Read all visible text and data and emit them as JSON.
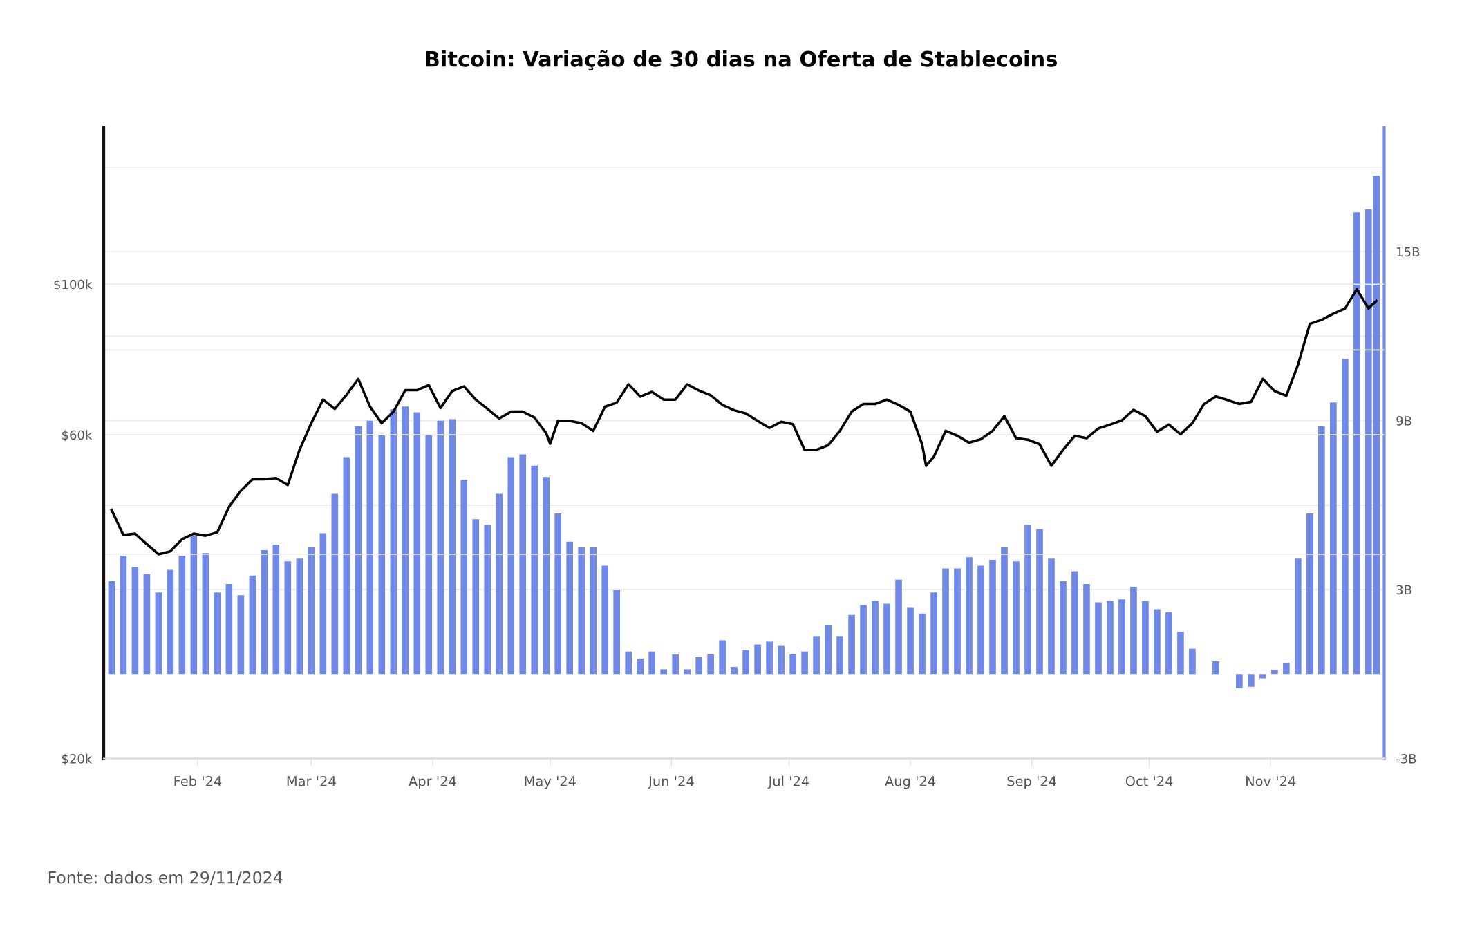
{
  "chart_data": {
    "type": "bar",
    "title": "Bitcoin: Variação de 30 dias na Oferta de Stablecoins",
    "annotations": [
      "Fonte: dados em 29/11/2024"
    ],
    "xlim": [
      "2024-01-08",
      "2024-11-30"
    ],
    "xticks": [
      {
        "value": "2024-02-01",
        "label": "Feb '24"
      },
      {
        "value": "2024-03-01",
        "label": "Mar '24"
      },
      {
        "value": "2024-04-01",
        "label": "Apr '24"
      },
      {
        "value": "2024-05-01",
        "label": "May '24"
      },
      {
        "value": "2024-06-01",
        "label": "Jun '24"
      },
      {
        "value": "2024-07-01",
        "label": "Jul '24"
      },
      {
        "value": "2024-08-01",
        "label": "Aug '24"
      },
      {
        "value": "2024-09-01",
        "label": "Sep '24"
      },
      {
        "value": "2024-10-01",
        "label": "Oct '24"
      },
      {
        "value": "2024-11-01",
        "label": "Nov '24"
      }
    ],
    "log": "y",
    "ylim": [
      20000,
      170000
    ],
    "yticks": [
      {
        "value": 20000,
        "label": "$20k"
      },
      {
        "value": 40000,
        "label": null
      },
      {
        "value": 60000,
        "label": "$60k"
      },
      {
        "value": 80000,
        "label": null
      },
      {
        "value": 100000,
        "label": "$100k"
      }
    ],
    "y2lim": [
      -3,
      19.4
    ],
    "y2ticks": [
      {
        "value": -3,
        "label": "-3B"
      },
      {
        "value": 3,
        "label": "3B"
      },
      {
        "value": 6,
        "label": null
      },
      {
        "value": 9,
        "label": "9B"
      },
      {
        "value": 12,
        "label": null
      },
      {
        "value": 15,
        "label": "15B"
      },
      {
        "value": 18,
        "label": null
      }
    ],
    "grid": true,
    "series": [
      {
        "axis": "y2",
        "color": "#7088e6",
        "x": [
          "2024-01-10",
          "2024-01-13",
          "2024-01-16",
          "2024-01-19",
          "2024-01-22",
          "2024-01-25",
          "2024-01-28",
          "2024-01-31",
          "2024-02-03",
          "2024-02-06",
          "2024-02-09",
          "2024-02-12",
          "2024-02-15",
          "2024-02-18",
          "2024-02-21",
          "2024-02-24",
          "2024-02-27",
          "2024-03-01",
          "2024-03-04",
          "2024-03-07",
          "2024-03-10",
          "2024-03-13",
          "2024-03-16",
          "2024-03-19",
          "2024-03-22",
          "2024-03-25",
          "2024-03-28",
          "2024-03-31",
          "2024-04-03",
          "2024-04-06",
          "2024-04-09",
          "2024-04-12",
          "2024-04-15",
          "2024-04-18",
          "2024-04-21",
          "2024-04-24",
          "2024-04-27",
          "2024-04-30",
          "2024-05-03",
          "2024-05-06",
          "2024-05-09",
          "2024-05-12",
          "2024-05-15",
          "2024-05-18",
          "2024-05-21",
          "2024-05-24",
          "2024-05-27",
          "2024-05-30",
          "2024-06-02",
          "2024-06-05",
          "2024-06-08",
          "2024-06-11",
          "2024-06-14",
          "2024-06-17",
          "2024-06-20",
          "2024-06-23",
          "2024-06-26",
          "2024-06-29",
          "2024-07-02",
          "2024-07-05",
          "2024-07-08",
          "2024-07-11",
          "2024-07-14",
          "2024-07-17",
          "2024-07-20",
          "2024-07-23",
          "2024-07-26",
          "2024-07-29",
          "2024-08-01",
          "2024-08-04",
          "2024-08-07",
          "2024-08-10",
          "2024-08-13",
          "2024-08-16",
          "2024-08-19",
          "2024-08-22",
          "2024-08-25",
          "2024-08-28",
          "2024-08-31",
          "2024-09-03",
          "2024-09-06",
          "2024-09-09",
          "2024-09-12",
          "2024-09-15",
          "2024-09-18",
          "2024-09-21",
          "2024-09-24",
          "2024-09-27",
          "2024-09-30",
          "2024-10-03",
          "2024-10-06",
          "2024-10-09",
          "2024-10-12",
          "2024-10-15",
          "2024-10-18",
          "2024-10-21",
          "2024-10-24",
          "2024-10-27",
          "2024-10-30",
          "2024-11-02",
          "2024-11-05",
          "2024-11-08",
          "2024-11-11",
          "2024-11-14",
          "2024-11-17",
          "2024-11-20",
          "2024-11-23",
          "2024-11-26",
          "2024-11-28"
        ],
        "values": [
          3.3,
          4.2,
          3.8,
          3.55,
          2.9,
          3.7,
          4.2,
          4.9,
          4.3,
          2.9,
          3.2,
          2.8,
          3.5,
          4.4,
          4.6,
          4.0,
          4.1,
          4.5,
          5.0,
          6.4,
          7.7,
          8.8,
          9.0,
          8.5,
          9.4,
          9.5,
          9.3,
          8.5,
          9.0,
          9.05,
          6.9,
          5.5,
          5.3,
          6.4,
          7.7,
          7.8,
          7.4,
          7.0,
          5.7,
          4.7,
          4.5,
          4.5,
          3.85,
          3.0,
          0.8,
          0.55,
          0.8,
          0.17,
          0.7,
          0.17,
          0.6,
          0.7,
          1.2,
          0.25,
          0.85,
          1.05,
          1.15,
          1.0,
          0.7,
          0.8,
          1.35,
          1.75,
          1.35,
          2.1,
          2.45,
          2.6,
          2.5,
          3.35,
          2.35,
          2.15,
          2.9,
          3.75,
          3.75,
          4.15,
          3.85,
          4.05,
          4.5,
          4.0,
          5.3,
          5.15,
          4.1,
          3.3,
          3.65,
          3.2,
          2.55,
          2.6,
          2.65,
          3.1,
          2.6,
          2.3,
          2.2,
          1.5,
          0.9,
          0.0,
          0.45,
          0.0,
          -0.5,
          -0.45,
          -0.15,
          0.15,
          0.4,
          4.1,
          5.7,
          8.8,
          9.65,
          11.2,
          16.4,
          16.5,
          17.7
        ]
      },
      {
        "type": "line",
        "axis": "y",
        "color": "#000000",
        "x": [
          "2024-01-10",
          "2024-01-13",
          "2024-01-16",
          "2024-01-19",
          "2024-01-22",
          "2024-01-25",
          "2024-01-28",
          "2024-01-31",
          "2024-02-03",
          "2024-02-06",
          "2024-02-09",
          "2024-02-12",
          "2024-02-15",
          "2024-02-18",
          "2024-02-21",
          "2024-02-24",
          "2024-02-27",
          "2024-03-01",
          "2024-03-04",
          "2024-03-07",
          "2024-03-10",
          "2024-03-13",
          "2024-03-16",
          "2024-03-19",
          "2024-03-22",
          "2024-03-25",
          "2024-03-28",
          "2024-03-31",
          "2024-04-03",
          "2024-04-06",
          "2024-04-09",
          "2024-04-12",
          "2024-04-15",
          "2024-04-18",
          "2024-04-21",
          "2024-04-24",
          "2024-04-27",
          "2024-04-30",
          "2024-05-01",
          "2024-05-03",
          "2024-05-06",
          "2024-05-09",
          "2024-05-12",
          "2024-05-15",
          "2024-05-18",
          "2024-05-21",
          "2024-05-24",
          "2024-05-27",
          "2024-05-30",
          "2024-06-02",
          "2024-06-05",
          "2024-06-08",
          "2024-06-11",
          "2024-06-14",
          "2024-06-17",
          "2024-06-20",
          "2024-06-23",
          "2024-06-26",
          "2024-06-29",
          "2024-07-02",
          "2024-07-05",
          "2024-07-08",
          "2024-07-11",
          "2024-07-14",
          "2024-07-17",
          "2024-07-20",
          "2024-07-23",
          "2024-07-26",
          "2024-07-29",
          "2024-08-01",
          "2024-08-04",
          "2024-08-05",
          "2024-08-07",
          "2024-08-10",
          "2024-08-13",
          "2024-08-16",
          "2024-08-19",
          "2024-08-22",
          "2024-08-25",
          "2024-08-28",
          "2024-08-31",
          "2024-09-03",
          "2024-09-06",
          "2024-09-09",
          "2024-09-12",
          "2024-09-15",
          "2024-09-18",
          "2024-09-21",
          "2024-09-24",
          "2024-09-27",
          "2024-09-30",
          "2024-10-03",
          "2024-10-06",
          "2024-10-09",
          "2024-10-12",
          "2024-10-15",
          "2024-10-18",
          "2024-10-21",
          "2024-10-24",
          "2024-10-27",
          "2024-10-30",
          "2024-11-02",
          "2024-11-05",
          "2024-11-08",
          "2024-11-11",
          "2024-11-14",
          "2024-11-17",
          "2024-11-20",
          "2024-11-23",
          "2024-11-26",
          "2024-11-28"
        ],
        "values": [
          46500,
          42700,
          42900,
          41400,
          40000,
          40400,
          42100,
          42900,
          42600,
          43100,
          47000,
          49600,
          51600,
          51600,
          51800,
          50600,
          57000,
          62400,
          67600,
          65500,
          68700,
          72500,
          66000,
          62400,
          64900,
          69800,
          69800,
          71000,
          65700,
          69600,
          70700,
          67600,
          65500,
          63400,
          64900,
          64900,
          63600,
          60300,
          58200,
          62900,
          62900,
          62400,
          60800,
          66000,
          66900,
          71200,
          68300,
          69400,
          67600,
          67600,
          71200,
          69700,
          68600,
          66400,
          65200,
          64500,
          62900,
          61400,
          62700,
          62200,
          57000,
          57000,
          57900,
          60800,
          64900,
          66600,
          66600,
          67600,
          66400,
          64900,
          58100,
          54000,
          55700,
          60800,
          59800,
          58400,
          59100,
          60800,
          63900,
          59300,
          59000,
          58100,
          54000,
          57000,
          59800,
          59300,
          61300,
          62100,
          63000,
          65300,
          63900,
          60600,
          62100,
          60100,
          62400,
          66600,
          68300,
          67500,
          66600,
          67100,
          72500,
          69600,
          68500,
          76100,
          87400,
          88600,
          90500,
          92100,
          98300,
          92100,
          94500
        ]
      }
    ]
  }
}
